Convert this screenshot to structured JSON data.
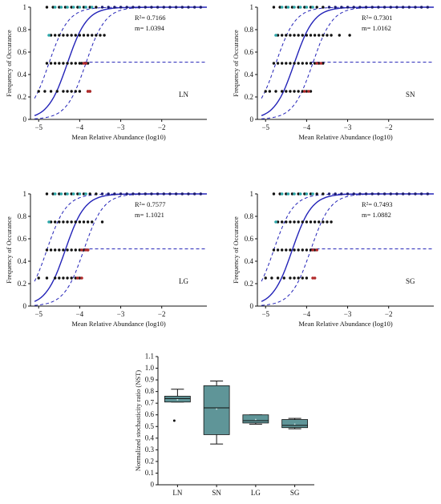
{
  "chart_data": [
    {
      "type": "scatter",
      "panel": "LN",
      "xlabel": "Mean Relative Abundance (log10)",
      "ylabel": "Frequency of Occurance",
      "xlim": [
        -5.2,
        -0.9
      ],
      "ylim": [
        0,
        1
      ],
      "xticks": [
        -5,
        -4,
        -3,
        -2
      ],
      "yticks": [
        0,
        0.2,
        0.4,
        0.6,
        0.8,
        1
      ],
      "r2_text": "R²= 0.7166",
      "m_text": "m= 1.0394",
      "curve_midpoint": -4.3,
      "rows": [
        {
          "y": 1.0,
          "x": [
            -4.8,
            -4.65,
            -4.5,
            -4.35,
            -4.2,
            -4.05,
            -3.9,
            -3.75,
            -3.6,
            -3.45,
            -3.3,
            -3.15,
            -3.0,
            -2.85,
            -2.7,
            -2.55,
            -2.4,
            -2.25,
            -2.1,
            -1.95,
            -1.8,
            -1.65,
            -1.5,
            -1.35,
            -1.2,
            -1.05
          ]
        },
        {
          "y": 0.75,
          "x": [
            -4.7,
            -4.6,
            -4.5,
            -4.4,
            -4.3,
            -4.2,
            -4.1,
            -4.0,
            -3.9,
            -3.8,
            -3.7,
            -3.6,
            -3.5,
            -3.4
          ]
        },
        {
          "y": 0.5,
          "x": [
            -4.8,
            -4.7,
            -4.6,
            -4.5,
            -4.4,
            -4.3,
            -4.2,
            -4.1,
            -4.0,
            -3.95,
            -3.85,
            -3.8
          ]
        },
        {
          "y": 0.25,
          "x": [
            -5.0,
            -4.85,
            -4.7,
            -4.55,
            -4.4,
            -4.3,
            -4.2,
            -4.1,
            -4.0,
            -3.8,
            -3.75
          ]
        }
      ],
      "teal_points": [
        [
          -4.6,
          1.0
        ],
        [
          -4.45,
          1.0
        ],
        [
          -4.3,
          1.0
        ],
        [
          -4.15,
          1.0
        ],
        [
          -4.0,
          1.0
        ],
        [
          -3.85,
          1.0
        ],
        [
          -3.7,
          1.0
        ],
        [
          -4.75,
          0.75
        ]
      ],
      "red_points": [
        [
          -3.9,
          0.5
        ],
        [
          -3.85,
          0.5
        ],
        [
          -3.8,
          0.25
        ],
        [
          -3.75,
          0.25
        ]
      ]
    },
    {
      "type": "scatter",
      "panel": "SN",
      "xlabel": "Mean Relative Abundance (log10)",
      "ylabel": "Frequency of Occurance",
      "xlim": [
        -5.2,
        -0.9
      ],
      "ylim": [
        0,
        1
      ],
      "xticks": [
        -5,
        -4,
        -3,
        -2
      ],
      "yticks": [
        0,
        0.2,
        0.4,
        0.6,
        0.8,
        1
      ],
      "r2_text": "R²= 0.7301",
      "m_text": "m= 1.0162",
      "curve_midpoint": -4.3,
      "rows": [
        {
          "y": 1.0,
          "x": [
            -4.8,
            -4.65,
            -4.5,
            -4.35,
            -4.2,
            -4.05,
            -3.9,
            -3.75,
            -3.6,
            -3.45,
            -3.3,
            -3.15,
            -3.0,
            -2.85,
            -2.7,
            -2.55,
            -2.4,
            -2.25,
            -2.1,
            -1.95,
            -1.8,
            -1.65,
            -1.5,
            -1.35,
            -1.2,
            -1.05
          ]
        },
        {
          "y": 0.75,
          "x": [
            -4.7,
            -4.6,
            -4.5,
            -4.4,
            -4.3,
            -4.2,
            -4.1,
            -4.0,
            -3.9,
            -3.8,
            -3.7,
            -3.6,
            -3.5,
            -3.4,
            -3.2,
            -2.95
          ]
        },
        {
          "y": 0.5,
          "x": [
            -4.8,
            -4.7,
            -4.6,
            -4.5,
            -4.4,
            -4.3,
            -4.2,
            -4.1,
            -4.0,
            -3.9,
            -3.8,
            -3.7,
            -3.6
          ]
        },
        {
          "y": 0.25,
          "x": [
            -5.0,
            -4.9,
            -4.75,
            -4.6,
            -4.5,
            -4.4,
            -4.3,
            -4.2,
            -4.1,
            -4.0,
            -3.9
          ]
        }
      ],
      "teal_points": [
        [
          -4.6,
          1.0
        ],
        [
          -4.45,
          1.0
        ],
        [
          -4.3,
          1.0
        ],
        [
          -4.15,
          1.0
        ],
        [
          -4.0,
          1.0
        ],
        [
          -3.85,
          1.0
        ],
        [
          -4.75,
          0.75
        ]
      ],
      "red_points": [
        [
          -3.75,
          0.5
        ],
        [
          -3.65,
          0.5
        ],
        [
          -4.05,
          0.25
        ],
        [
          -3.95,
          0.25
        ]
      ]
    },
    {
      "type": "scatter",
      "panel": "LG",
      "xlabel": "Mean Relative Abundance (log10)",
      "ylabel": "Frequency of Occurance",
      "xlim": [
        -5.2,
        -0.9
      ],
      "ylim": [
        0,
        1
      ],
      "xticks": [
        -5,
        -4,
        -3,
        -2
      ],
      "yticks": [
        0,
        0.2,
        0.4,
        0.6,
        0.8,
        1
      ],
      "r2_text": "R²= 0.7577",
      "m_text": "m= 1.1021",
      "curve_midpoint": -4.35,
      "rows": [
        {
          "y": 1.0,
          "x": [
            -4.8,
            -4.65,
            -4.5,
            -4.35,
            -4.2,
            -4.05,
            -3.9,
            -3.75,
            -3.6,
            -3.45,
            -3.3,
            -3.15,
            -3.0,
            -2.85,
            -2.7,
            -2.55,
            -2.4,
            -2.25,
            -2.1,
            -1.95,
            -1.8,
            -1.65,
            -1.5,
            -1.35,
            -1.2,
            -1.05
          ]
        },
        {
          "y": 0.75,
          "x": [
            -4.7,
            -4.6,
            -4.5,
            -4.4,
            -4.3,
            -4.2,
            -4.1,
            -4.0,
            -3.9,
            -3.8,
            -3.7,
            -3.45
          ]
        },
        {
          "y": 0.5,
          "x": [
            -4.8,
            -4.7,
            -4.6,
            -4.5,
            -4.4,
            -4.3,
            -4.2,
            -4.1,
            -4.0,
            -3.9,
            -3.8
          ]
        },
        {
          "y": 0.25,
          "x": [
            -5.0,
            -4.8,
            -4.6,
            -4.5,
            -4.4,
            -4.3,
            -4.2,
            -4.1,
            -4.0
          ]
        }
      ],
      "teal_points": [
        [
          -4.6,
          1.0
        ],
        [
          -4.45,
          1.0
        ],
        [
          -4.3,
          1.0
        ],
        [
          -4.15,
          1.0
        ],
        [
          -4.0,
          1.0
        ],
        [
          -3.85,
          1.0
        ],
        [
          -4.75,
          0.75
        ]
      ],
      "red_points": [
        [
          -3.95,
          0.5
        ],
        [
          -3.85,
          0.5
        ],
        [
          -3.8,
          0.5
        ],
        [
          -4.05,
          0.25
        ],
        [
          -3.95,
          0.25
        ]
      ]
    },
    {
      "type": "scatter",
      "panel": "SG",
      "xlabel": "Mean Relative Abundance (log10)",
      "ylabel": "Frequency of Occurance",
      "xlim": [
        -5.2,
        -0.9
      ],
      "ylim": [
        0,
        1
      ],
      "xticks": [
        -5,
        -4,
        -3,
        -2
      ],
      "yticks": [
        0,
        0.2,
        0.4,
        0.6,
        0.8,
        1
      ],
      "r2_text": "R²= 0.7493",
      "m_text": "m= 1.0882",
      "curve_midpoint": -4.35,
      "rows": [
        {
          "y": 1.0,
          "x": [
            -4.8,
            -4.65,
            -4.5,
            -4.35,
            -4.2,
            -4.05,
            -3.9,
            -3.75,
            -3.6,
            -3.45,
            -3.3,
            -3.15,
            -3.0,
            -2.85,
            -2.7,
            -2.55,
            -2.4,
            -2.25,
            -2.1,
            -1.95,
            -1.8,
            -1.65,
            -1.5,
            -1.35,
            -1.2,
            -1.05
          ]
        },
        {
          "y": 0.75,
          "x": [
            -4.7,
            -4.6,
            -4.5,
            -4.4,
            -4.3,
            -4.2,
            -4.1,
            -4.0,
            -3.9,
            -3.8,
            -3.7,
            -3.6,
            -3.5,
            -3.4
          ]
        },
        {
          "y": 0.5,
          "x": [
            -4.8,
            -4.7,
            -4.6,
            -4.5,
            -4.4,
            -4.3,
            -4.2,
            -4.1,
            -4.0,
            -3.9,
            -3.8
          ]
        },
        {
          "y": 0.25,
          "x": [
            -5.0,
            -4.85,
            -4.7,
            -4.55,
            -4.4,
            -4.3,
            -4.2,
            -4.1,
            -4.0
          ]
        }
      ],
      "teal_points": [
        [
          -4.6,
          1.0
        ],
        [
          -4.45,
          1.0
        ],
        [
          -4.3,
          1.0
        ],
        [
          -4.15,
          1.0
        ],
        [
          -4.0,
          1.0
        ],
        [
          -3.85,
          1.0
        ],
        [
          -4.75,
          0.75
        ]
      ],
      "red_points": [
        [
          -3.85,
          0.5
        ],
        [
          -3.75,
          0.5
        ],
        [
          -3.85,
          0.25
        ],
        [
          -3.8,
          0.25
        ]
      ]
    },
    {
      "type": "box",
      "ylabel": "Normalized stochasticity ratio (NST)",
      "categories": [
        "LN",
        "SN",
        "LG",
        "SG"
      ],
      "ylim": [
        0,
        1.1
      ],
      "yticks": [
        0,
        0.1,
        0.2,
        0.3,
        0.4,
        0.5,
        0.6,
        0.7,
        0.8,
        0.9,
        1.0,
        1.1
      ],
      "ytick_labels": [
        "0",
        "0.1",
        "0.2",
        "0.3",
        "0.4",
        "0.5",
        "0.6",
        "0.7",
        "0.8",
        "0.9",
        "1.0",
        "1.1"
      ],
      "boxes": [
        {
          "category": "LN",
          "whisker_low": 0.71,
          "q1": 0.71,
          "median": 0.74,
          "q3": 0.76,
          "whisker_high": 0.82,
          "mean": 0.73,
          "outliers": [
            0.55
          ]
        },
        {
          "category": "SN",
          "whisker_low": 0.35,
          "q1": 0.43,
          "median": 0.66,
          "q3": 0.85,
          "whisker_high": 0.89,
          "mean": 0.65,
          "outliers": []
        },
        {
          "category": "LG",
          "whisker_low": 0.52,
          "q1": 0.53,
          "median": 0.55,
          "q3": 0.6,
          "whisker_high": 0.6,
          "mean": 0.56,
          "outliers": []
        },
        {
          "category": "SG",
          "whisker_low": 0.48,
          "q1": 0.49,
          "median": 0.51,
          "q3": 0.56,
          "whisker_high": 0.57,
          "mean": 0.52,
          "outliers": []
        }
      ]
    }
  ],
  "colors": {
    "axis": "#111111",
    "black_points": "#111111",
    "navy_points": "#1a1a6e",
    "teal_points": "#2aa6a8",
    "red_points": "#b22a2a",
    "fit_curve": "#2323b8",
    "box_fill": "#5f9598"
  }
}
